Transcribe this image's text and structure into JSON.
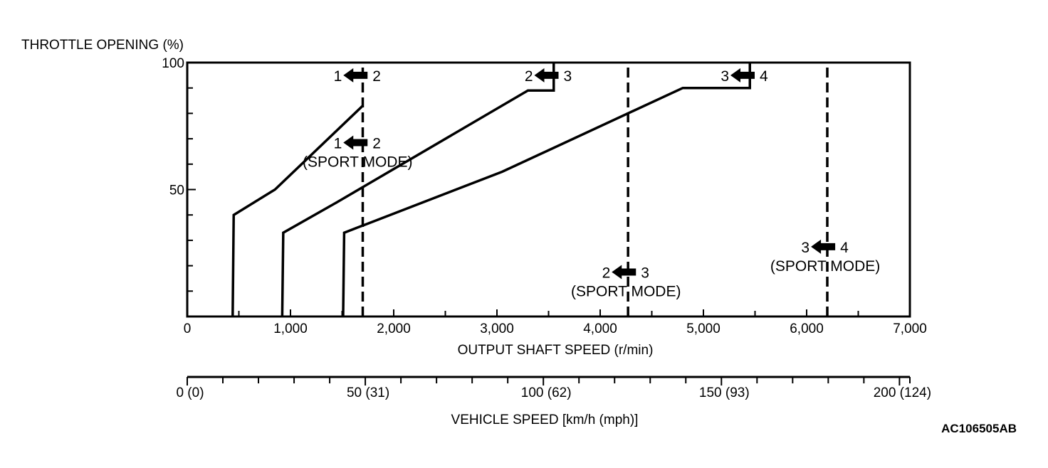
{
  "chart_data": {
    "type": "line",
    "ylabel": "THROTTLE OPENING (%)",
    "xlabel": "OUTPUT SHAFT SPEED (r/min)",
    "secondary_xlabel": "VEHICLE SPEED [km/h (mph)]",
    "xlim": [
      0,
      7000
    ],
    "ylim": [
      0,
      100
    ],
    "x_ticks": [
      "0",
      "1,000",
      "2,000",
      "3,000",
      "4,000",
      "5,000",
      "6,000",
      "7,000"
    ],
    "y_ticks": [
      "50",
      "100"
    ],
    "vehicle_ticks": [
      "0 (0)",
      "50 (31)",
      "100 (62)",
      "150 (93)",
      "200 (124)"
    ],
    "grid": false,
    "series": [
      {
        "shift_from": "1",
        "shift_to": "2",
        "style": "solid",
        "points": [
          [
            440,
            0
          ],
          [
            450,
            40
          ],
          [
            850,
            50
          ],
          [
            1700,
            83
          ]
        ]
      },
      {
        "shift_from": "2",
        "shift_to": "3",
        "style": "solid",
        "points": [
          [
            920,
            0
          ],
          [
            930,
            33
          ],
          [
            1450,
            45
          ],
          [
            3300,
            89
          ],
          [
            3550,
            89
          ],
          [
            3550,
            100
          ]
        ]
      },
      {
        "shift_from": "3",
        "shift_to": "4",
        "style": "solid",
        "points": [
          [
            1510,
            0
          ],
          [
            1520,
            33
          ],
          [
            3050,
            57
          ],
          [
            4800,
            90
          ],
          [
            5450,
            90
          ],
          [
            5450,
            100
          ]
        ]
      },
      {
        "shift_from": "1",
        "shift_to": "2",
        "mode": "(SPORT MODE)",
        "style": "dashed",
        "points": [
          [
            1700,
            0
          ],
          [
            1700,
            100
          ]
        ]
      },
      {
        "shift_from": "2",
        "shift_to": "3",
        "mode": "(SPORT MODE)",
        "style": "dashed",
        "points": [
          [
            4270,
            0
          ],
          [
            4270,
            100
          ]
        ]
      },
      {
        "shift_from": "3",
        "shift_to": "4",
        "mode": "(SPORT MODE)",
        "style": "dashed",
        "points": [
          [
            6200,
            0
          ],
          [
            6200,
            100
          ]
        ]
      }
    ],
    "annotations": [
      {
        "from": "1",
        "to": "2",
        "x": 1650,
        "y": 95,
        "mode": ""
      },
      {
        "from": "2",
        "to": "3",
        "x": 3500,
        "y": 95,
        "mode": ""
      },
      {
        "from": "3",
        "to": "4",
        "x": 5400,
        "y": 95,
        "mode": ""
      },
      {
        "from": "1",
        "to": "2",
        "x": 1650,
        "y": 68.5,
        "mode": "(SPORT MODE)"
      },
      {
        "from": "2",
        "to": "3",
        "x": 4250,
        "y": 17.5,
        "mode": "(SPORT MODE)"
      },
      {
        "from": "3",
        "to": "4",
        "x": 6180,
        "y": 27.5,
        "mode": "(SPORT MODE)"
      }
    ]
  },
  "reference_code": "AC106505AB"
}
